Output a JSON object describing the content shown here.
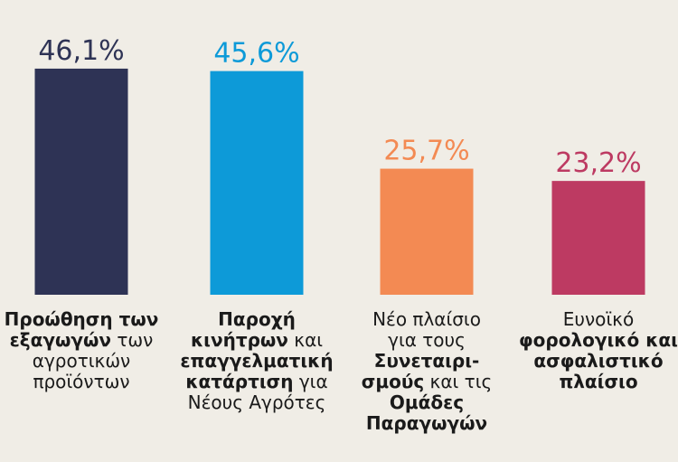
{
  "chart_data": {
    "type": "bar",
    "ylim": [
      0,
      50
    ],
    "grid": false,
    "categories": [
      "Προώθηση των εξαγωγών των αγροτικών προϊόντων",
      "Παροχή κινήτρων και επαγγελματική κατάρτιση για Νέους Αγρότες",
      "Νέο πλαίσιο για τους Συνεταιρισμούς και τις Ομάδες Παραγωγών",
      "Ευνοϊκό φορολογικό και ασφαλιστικό πλαίσιο"
    ],
    "values": [
      46.1,
      45.6,
      25.7,
      23.2
    ],
    "value_labels": [
      "46,1%",
      "45,6%",
      "25,7%",
      "23,2%"
    ],
    "colors": [
      "#2e3355",
      "#0d9ad8",
      "#f38a53",
      "#bd3a62"
    ],
    "category_lines": [
      [
        {
          "b": "Προώθηση των"
        },
        {
          "b": "εξαγωγών",
          "t": " των"
        },
        {
          "t": "αγροτικών"
        },
        {
          "t": "προϊόντων"
        }
      ],
      [
        {
          "b": "Παροχή"
        },
        {
          "b": "κινήτρων",
          "t": " και"
        },
        {
          "b": "επαγγελματική"
        },
        {
          "b": "κατάρτιση",
          "t": " για"
        },
        {
          "t": "Νέους Αγρότες"
        }
      ],
      [
        {
          "t": "Νέο πλαίσιο"
        },
        {
          "t": "για τους"
        },
        {
          "b": "Συνεταιρι-"
        },
        {
          "b": "σμούς",
          "t": " και τις"
        },
        {
          "b": "Ομάδες"
        },
        {
          "b": "Παραγωγών"
        }
      ],
      [
        {
          "t": "Ευνοϊκό"
        },
        {
          "b": "φορολογικό και"
        },
        {
          "b": "ασφαλιστικό"
        },
        {
          "b": "πλαίσιο"
        }
      ]
    ]
  }
}
